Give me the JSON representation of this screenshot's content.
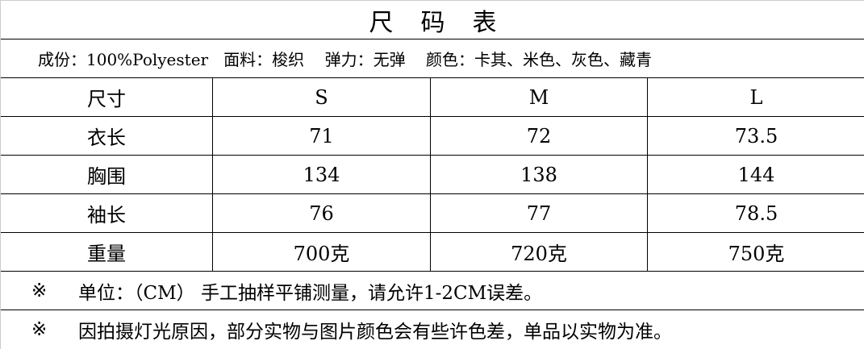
{
  "title": "尺码表",
  "info": "成份：100%Polyester   面料：梭织    弹力：无弹    颜色：卡其、米色、灰色、藏青",
  "header": [
    "尺寸",
    "S",
    "M",
    "L"
  ],
  "rows": [
    [
      "衣长",
      "71",
      "72",
      "73.5"
    ],
    [
      "胸围",
      "134",
      "138",
      "144"
    ],
    [
      "袖长",
      "76",
      "77",
      "78.5"
    ],
    [
      "重量",
      "700克",
      "720克",
      "750克"
    ]
  ],
  "notes": [
    {
      "mark": "※",
      "text": "单位：（CM） 手工抽样平铺测量，请允许1-2CM误差。"
    },
    {
      "mark": "※",
      "text": "因拍摄灯光原因，部分实物与图片颜色会有些许色差，单品以实物为准。"
    }
  ]
}
